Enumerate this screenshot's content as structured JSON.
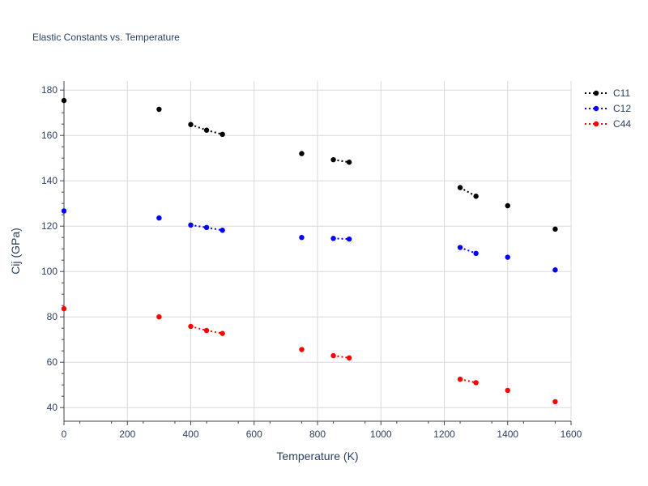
{
  "chart_data": {
    "type": "scatter",
    "title": "Elastic Constants vs. Temperature",
    "xlabel": "Temperature (K)",
    "ylabel": "Cij (GPa)",
    "xlim": [
      0,
      1600
    ],
    "ylim": [
      34,
      184
    ],
    "xticks": [
      0,
      200,
      400,
      600,
      800,
      1000,
      1200,
      1400,
      1600
    ],
    "yticks": [
      40,
      60,
      80,
      100,
      120,
      140,
      160,
      180
    ],
    "grid": true,
    "legend_position": "top-right",
    "x": [
      0,
      300,
      400,
      450,
      500,
      750,
      850,
      900,
      1250,
      1300,
      1400,
      1550
    ],
    "series": [
      {
        "name": "C11",
        "color": "#000000",
        "values": [
          175.4,
          171.5,
          164.8,
          162.3,
          160.5,
          152.0,
          149.3,
          148.2,
          137.0,
          133.2,
          129.0,
          118.7
        ]
      },
      {
        "name": "C12",
        "color": "#0000ff",
        "values": [
          126.7,
          123.6,
          120.5,
          119.4,
          118.2,
          115.0,
          114.6,
          114.3,
          110.6,
          108.0,
          106.3,
          100.7
        ]
      },
      {
        "name": "C44",
        "color": "#ff0000",
        "values": [
          83.6,
          80.0,
          75.8,
          74.0,
          72.7,
          65.6,
          62.9,
          61.9,
          52.5,
          51.0,
          47.6,
          42.6
        ]
      }
    ],
    "dotted_segments": [
      [
        2,
        3
      ],
      [
        3,
        4
      ],
      [
        6,
        7
      ],
      [
        8,
        9
      ]
    ]
  }
}
